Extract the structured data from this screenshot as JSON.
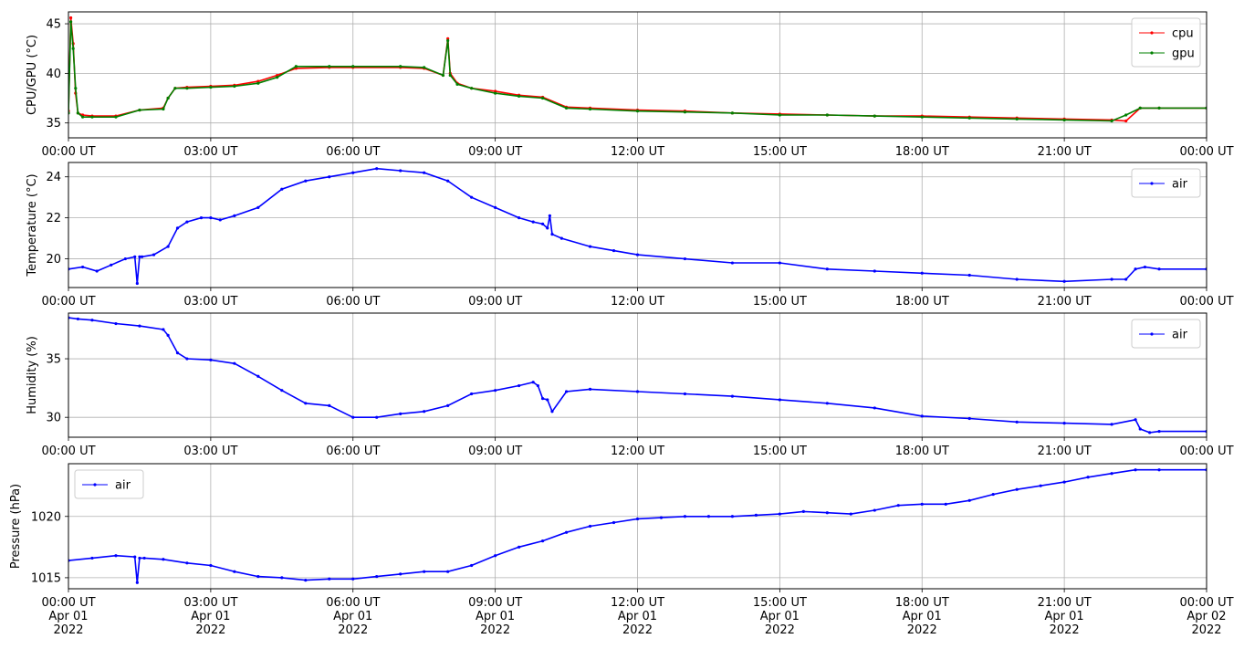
{
  "chart_data": [
    {
      "type": "line",
      "ylabel": "CPU/GPU (°C)",
      "xlim": [
        0,
        24
      ],
      "ylim": [
        33.5,
        46.2
      ],
      "yticks": [
        35,
        40,
        45
      ],
      "xticklabels": [
        "00:00 UT",
        "03:00 UT",
        "06:00 UT",
        "09:00 UT",
        "12:00 UT",
        "15:00 UT",
        "18:00 UT",
        "21:00 UT",
        "00:00 UT"
      ],
      "grid": true,
      "legend": "upper-right",
      "series": [
        {
          "name": "cpu",
          "color": "#ff0000",
          "x": [
            0,
            0.05,
            0.1,
            0.15,
            0.2,
            0.3,
            0.5,
            1.0,
            1.5,
            2.0,
            2.1,
            2.25,
            2.5,
            3.0,
            3.5,
            4.0,
            4.4,
            4.8,
            5.5,
            6.0,
            7.0,
            7.5,
            7.9,
            8.0,
            8.05,
            8.2,
            8.5,
            9.0,
            9.5,
            10.0,
            10.5,
            11.0,
            12.0,
            13.0,
            14.0,
            15.0,
            16.0,
            17.0,
            18.0,
            19.0,
            20.0,
            21.0,
            22.0,
            22.3,
            22.6,
            23.0,
            24.0
          ],
          "y": [
            36.2,
            45.6,
            43.0,
            38.0,
            36.0,
            35.8,
            35.7,
            35.7,
            36.3,
            36.5,
            37.5,
            38.5,
            38.6,
            38.7,
            38.8,
            39.2,
            39.8,
            40.5,
            40.6,
            40.6,
            40.6,
            40.5,
            39.8,
            43.5,
            40.0,
            39.0,
            38.5,
            38.2,
            37.8,
            37.6,
            36.6,
            36.5,
            36.3,
            36.2,
            36.0,
            35.9,
            35.8,
            35.7,
            35.7,
            35.6,
            35.5,
            35.4,
            35.3,
            35.2,
            36.5,
            36.5,
            36.5
          ]
        },
        {
          "name": "gpu",
          "color": "#008000",
          "x": [
            0,
            0.05,
            0.1,
            0.15,
            0.2,
            0.3,
            0.5,
            1.0,
            1.5,
            2.0,
            2.1,
            2.25,
            2.5,
            3.0,
            3.5,
            4.0,
            4.4,
            4.8,
            5.5,
            6.0,
            7.0,
            7.5,
            7.9,
            8.0,
            8.05,
            8.2,
            8.5,
            9.0,
            9.5,
            10.0,
            10.5,
            11.0,
            12.0,
            13.0,
            14.0,
            15.0,
            16.0,
            17.0,
            18.0,
            19.0,
            20.0,
            21.0,
            22.0,
            22.3,
            22.6,
            23.0,
            24.0
          ],
          "y": [
            36.0,
            45.2,
            42.5,
            38.5,
            36.0,
            35.6,
            35.6,
            35.6,
            36.3,
            36.4,
            37.5,
            38.5,
            38.5,
            38.6,
            38.7,
            39.0,
            39.6,
            40.7,
            40.7,
            40.7,
            40.7,
            40.6,
            39.8,
            43.3,
            39.8,
            38.9,
            38.5,
            38.0,
            37.7,
            37.5,
            36.5,
            36.4,
            36.2,
            36.1,
            36.0,
            35.8,
            35.8,
            35.7,
            35.6,
            35.5,
            35.4,
            35.3,
            35.2,
            35.8,
            36.5,
            36.5,
            36.5
          ]
        }
      ]
    },
    {
      "type": "line",
      "ylabel": "Temperature (°C)",
      "xlim": [
        0,
        24
      ],
      "ylim": [
        18.6,
        24.7
      ],
      "yticks": [
        20,
        22,
        24
      ],
      "xticklabels": [
        "00:00 UT",
        "03:00 UT",
        "06:00 UT",
        "09:00 UT",
        "12:00 UT",
        "15:00 UT",
        "18:00 UT",
        "21:00 UT",
        "00:00 UT"
      ],
      "grid": true,
      "legend": "upper-right",
      "series": [
        {
          "name": "air",
          "color": "#0000ff",
          "x": [
            0,
            0.3,
            0.6,
            0.9,
            1.2,
            1.4,
            1.45,
            1.5,
            1.55,
            1.8,
            2.1,
            2.3,
            2.5,
            2.8,
            3.0,
            3.2,
            3.5,
            4.0,
            4.5,
            5.0,
            5.5,
            6.0,
            6.5,
            7.0,
            7.5,
            8.0,
            8.5,
            9.0,
            9.5,
            9.8,
            10.0,
            10.1,
            10.15,
            10.2,
            10.4,
            11.0,
            11.5,
            12.0,
            13.0,
            14.0,
            15.0,
            16.0,
            17.0,
            18.0,
            19.0,
            20.0,
            21.0,
            22.0,
            22.3,
            22.5,
            22.7,
            23.0,
            24.0
          ],
          "y": [
            19.5,
            19.6,
            19.4,
            19.7,
            20.0,
            20.1,
            18.8,
            20.1,
            20.1,
            20.2,
            20.6,
            21.5,
            21.8,
            22.0,
            22.0,
            21.9,
            22.1,
            22.5,
            23.4,
            23.8,
            24.0,
            24.2,
            24.4,
            24.3,
            24.2,
            23.8,
            23.0,
            22.5,
            22.0,
            21.8,
            21.7,
            21.5,
            22.1,
            21.2,
            21.0,
            20.6,
            20.4,
            20.2,
            20.0,
            19.8,
            19.8,
            19.5,
            19.4,
            19.3,
            19.2,
            19.0,
            18.9,
            19.0,
            19.0,
            19.5,
            19.6,
            19.5,
            19.5
          ]
        }
      ]
    },
    {
      "type": "line",
      "ylabel": "Humidity (%)",
      "xlim": [
        0,
        24
      ],
      "ylim": [
        28.3,
        38.9
      ],
      "yticks": [
        30,
        35
      ],
      "xticklabels": [
        "00:00 UT",
        "03:00 UT",
        "06:00 UT",
        "09:00 UT",
        "12:00 UT",
        "15:00 UT",
        "18:00 UT",
        "21:00 UT",
        "00:00 UT"
      ],
      "grid": true,
      "legend": "upper-right",
      "series": [
        {
          "name": "air",
          "color": "#0000ff",
          "x": [
            0,
            0.2,
            0.5,
            1.0,
            1.5,
            2.0,
            2.1,
            2.3,
            2.5,
            3.0,
            3.5,
            4.0,
            4.5,
            5.0,
            5.5,
            6.0,
            6.5,
            7.0,
            7.5,
            8.0,
            8.5,
            9.0,
            9.5,
            9.8,
            9.9,
            10.0,
            10.1,
            10.2,
            10.5,
            11.0,
            12.0,
            13.0,
            14.0,
            15.0,
            16.0,
            17.0,
            18.0,
            19.0,
            20.0,
            21.0,
            22.0,
            22.5,
            22.6,
            22.8,
            23.0,
            24.0
          ],
          "y": [
            38.5,
            38.4,
            38.3,
            38.0,
            37.8,
            37.5,
            37.0,
            35.5,
            35.0,
            34.9,
            34.6,
            33.5,
            32.3,
            31.2,
            31.0,
            30.0,
            30.0,
            30.3,
            30.5,
            31.0,
            32.0,
            32.3,
            32.7,
            33.0,
            32.7,
            31.6,
            31.5,
            30.5,
            32.2,
            32.4,
            32.2,
            32.0,
            31.8,
            31.5,
            31.2,
            30.8,
            30.1,
            29.9,
            29.6,
            29.5,
            29.4,
            29.8,
            29.0,
            28.7,
            28.8,
            28.8
          ]
        }
      ]
    },
    {
      "type": "line",
      "ylabel": "Pressure (hPa)",
      "xlim": [
        0,
        24
      ],
      "ylim": [
        1014.1,
        1024.3
      ],
      "yticks": [
        1015,
        1020
      ],
      "xticklabels": [
        "00:00 UT\nApr 01\n2022",
        "03:00 UT\nApr 01\n2022",
        "06:00 UT\nApr 01\n2022",
        "09:00 UT\nApr 01\n2022",
        "12:00 UT\nApr 01\n2022",
        "15:00 UT\nApr 01\n2022",
        "18:00 UT\nApr 01\n2022",
        "21:00 UT\nApr 01\n2022",
        "00:00 UT\nApr 02\n2022"
      ],
      "grid": true,
      "legend": "upper-left",
      "series": [
        {
          "name": "air",
          "color": "#0000ff",
          "x": [
            0,
            0.5,
            1.0,
            1.4,
            1.45,
            1.5,
            1.6,
            2.0,
            2.5,
            3.0,
            3.5,
            4.0,
            4.5,
            5.0,
            5.5,
            6.0,
            6.5,
            7.0,
            7.5,
            8.0,
            8.5,
            9.0,
            9.5,
            10.0,
            10.5,
            11.0,
            11.5,
            12.0,
            12.5,
            13.0,
            13.5,
            14.0,
            14.5,
            15.0,
            15.5,
            16.0,
            16.5,
            17.0,
            17.5,
            18.0,
            18.5,
            19.0,
            19.5,
            20.0,
            20.5,
            21.0,
            21.5,
            22.0,
            22.5,
            23.0,
            24.0
          ],
          "y": [
            1016.4,
            1016.6,
            1016.8,
            1016.7,
            1014.6,
            1016.6,
            1016.6,
            1016.5,
            1016.2,
            1016.0,
            1015.5,
            1015.1,
            1015.0,
            1014.8,
            1014.9,
            1014.9,
            1015.1,
            1015.3,
            1015.5,
            1015.5,
            1016.0,
            1016.8,
            1017.5,
            1018.0,
            1018.7,
            1019.2,
            1019.5,
            1019.8,
            1019.9,
            1020.0,
            1020.0,
            1020.0,
            1020.1,
            1020.2,
            1020.4,
            1020.3,
            1020.2,
            1020.5,
            1020.9,
            1021.0,
            1021.0,
            1021.3,
            1021.8,
            1022.2,
            1022.5,
            1022.8,
            1023.2,
            1023.5,
            1023.8,
            1023.8,
            1023.8
          ]
        }
      ]
    }
  ]
}
